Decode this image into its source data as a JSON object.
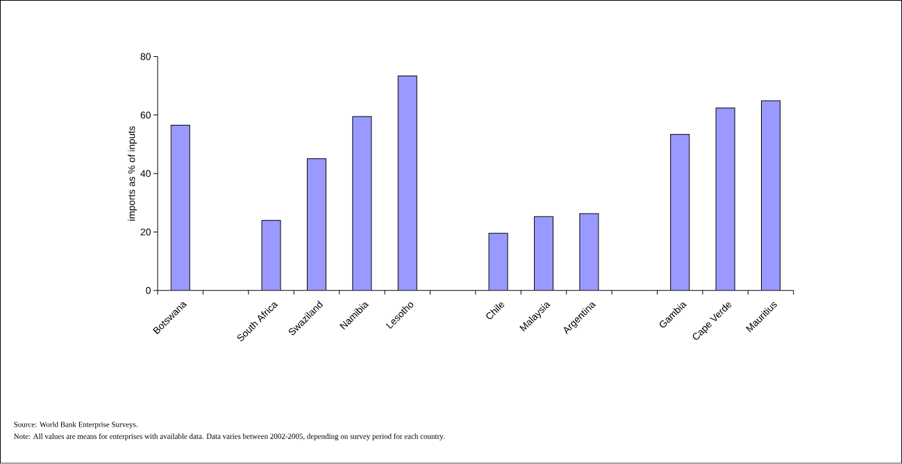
{
  "chart_data": {
    "type": "bar",
    "categories": [
      "Botswana",
      null,
      "South Africa",
      "Swaziland",
      "Namibia",
      "Lesotho",
      null,
      "Chile",
      "Malaysia",
      "Argentina",
      null,
      "Gambia",
      "Cape Verde",
      "Mauritius"
    ],
    "values": [
      56.5,
      null,
      24.0,
      45.1,
      59.5,
      73.4,
      null,
      19.6,
      25.3,
      26.3,
      null,
      53.4,
      62.4,
      64.9
    ],
    "color": "#9999ff",
    "ylabel": "imports as % of inputs",
    "ylim": [
      0,
      80
    ],
    "yticks": [
      0,
      20,
      40,
      60,
      80
    ],
    "annotations": [
      "Source: World Bank Enterprise Surveys.",
      "Note:  All values are means for enterprises with available data.    Data varies between 2002-2005, depending on survey period for each country."
    ]
  }
}
